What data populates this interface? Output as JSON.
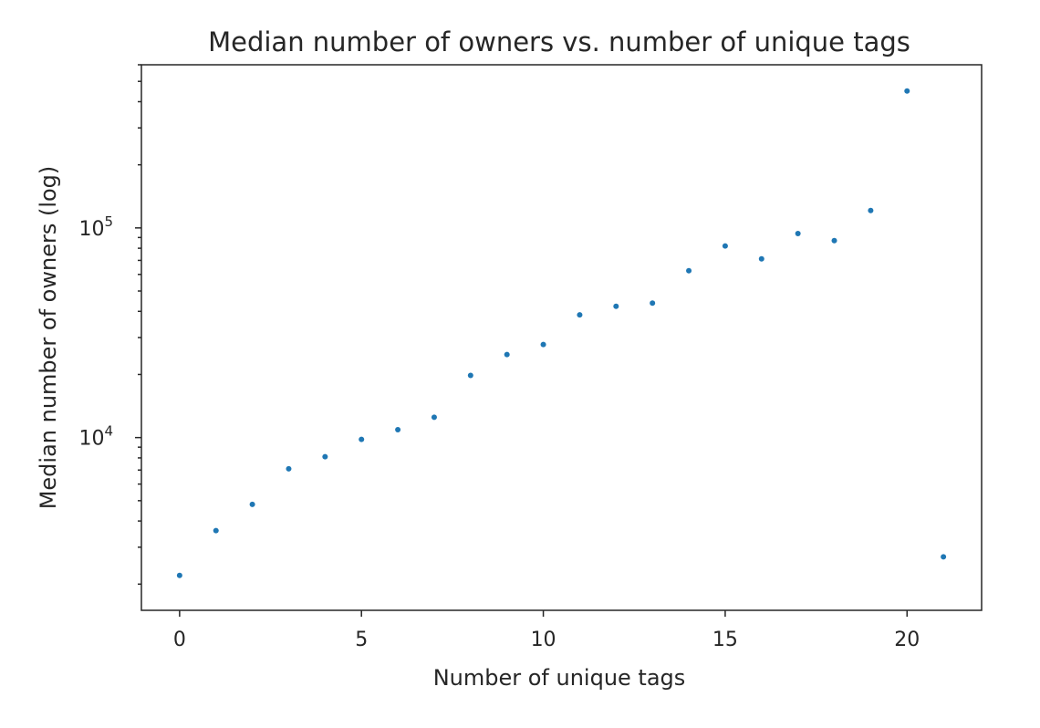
{
  "chart_data": {
    "type": "scatter",
    "title": "Median number of owners vs. number of unique tags",
    "xlabel": "Number of unique tags",
    "ylabel": "Median number of owners (log)",
    "xlim": [
      -1.05,
      22.05
    ],
    "ylim": [
      1500,
      600000
    ],
    "yscale": "log",
    "grid": false,
    "xticks": [
      {
        "value": 0,
        "label": "0"
      },
      {
        "value": 5,
        "label": "5"
      },
      {
        "value": 10,
        "label": "10"
      },
      {
        "value": 15,
        "label": "15"
      },
      {
        "value": 20,
        "label": "20"
      }
    ],
    "yticks": [
      {
        "value": 10000,
        "base": "10",
        "exp": "4"
      },
      {
        "value": 100000,
        "base": "10",
        "exp": "5"
      }
    ],
    "color": "#1f77b4",
    "points": [
      {
        "x": 0,
        "y": 2200
      },
      {
        "x": 1,
        "y": 3600
      },
      {
        "x": 2,
        "y": 4800
      },
      {
        "x": 3,
        "y": 7100
      },
      {
        "x": 4,
        "y": 8100
      },
      {
        "x": 5,
        "y": 9800
      },
      {
        "x": 6,
        "y": 10900
      },
      {
        "x": 7,
        "y": 12500
      },
      {
        "x": 8,
        "y": 19800
      },
      {
        "x": 9,
        "y": 24900
      },
      {
        "x": 10,
        "y": 27800
      },
      {
        "x": 11,
        "y": 38500
      },
      {
        "x": 12,
        "y": 42300
      },
      {
        "x": 13,
        "y": 43800
      },
      {
        "x": 14,
        "y": 62500
      },
      {
        "x": 15,
        "y": 82000
      },
      {
        "x": 16,
        "y": 71200
      },
      {
        "x": 17,
        "y": 94000
      },
      {
        "x": 18,
        "y": 87000
      },
      {
        "x": 19,
        "y": 121000
      },
      {
        "x": 20,
        "y": 450000
      },
      {
        "x": 21,
        "y": 2700
      }
    ]
  }
}
